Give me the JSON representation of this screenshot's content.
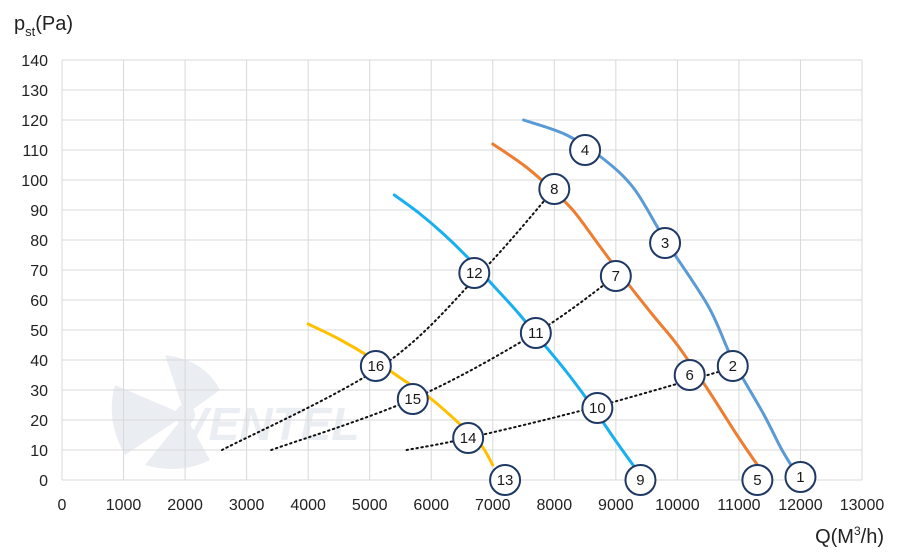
{
  "chart_data": {
    "type": "line",
    "title": "",
    "ylabel": {
      "main": "p",
      "sub": "st",
      "unit": "(Pa)"
    },
    "xlabel": {
      "main": "Q(M",
      "sup": "3",
      "unit": "/h)"
    },
    "xlim": [
      0,
      13000
    ],
    "ylim": [
      0,
      140
    ],
    "x_ticks": [
      0,
      1000,
      2000,
      3000,
      4000,
      5000,
      6000,
      7000,
      8000,
      9000,
      10000,
      11000,
      12000,
      13000
    ],
    "y_ticks": [
      0,
      10,
      20,
      30,
      40,
      50,
      60,
      70,
      80,
      90,
      100,
      110,
      120,
      130,
      140
    ],
    "grid": true,
    "watermark": "VENTEL",
    "series": [
      {
        "color": "#5b9bd5",
        "points": [
          [
            7500,
            120
          ],
          [
            8200,
            115
          ],
          [
            8800,
            107
          ],
          [
            9300,
            97
          ],
          [
            9800,
            80
          ],
          [
            10500,
            58
          ],
          [
            10900,
            40
          ],
          [
            11400,
            22
          ],
          [
            11700,
            10
          ],
          [
            11970,
            1
          ]
        ]
      },
      {
        "color": "#ed7d31",
        "points": [
          [
            7000,
            112
          ],
          [
            7500,
            105
          ],
          [
            7900,
            98
          ],
          [
            8300,
            90
          ],
          [
            8700,
            79
          ],
          [
            9100,
            68
          ],
          [
            9600,
            55
          ],
          [
            10000,
            45
          ],
          [
            10500,
            30
          ],
          [
            11000,
            14
          ],
          [
            11370,
            3
          ]
        ]
      },
      {
        "color": "#1ab0ef",
        "points": [
          [
            5400,
            95
          ],
          [
            5800,
            89
          ],
          [
            6200,
            82
          ],
          [
            6600,
            74
          ],
          [
            7000,
            65
          ],
          [
            7400,
            56
          ],
          [
            7800,
            46
          ],
          [
            8200,
            36
          ],
          [
            8600,
            25
          ],
          [
            9000,
            13
          ],
          [
            9350,
            3
          ]
        ]
      },
      {
        "color": "#ffc000",
        "points": [
          [
            4000,
            52
          ],
          [
            4500,
            47
          ],
          [
            5000,
            41
          ],
          [
            5500,
            34
          ],
          [
            6000,
            27
          ],
          [
            6500,
            18
          ],
          [
            6800,
            12
          ],
          [
            7000,
            5
          ]
        ]
      }
    ],
    "operating_lines": [
      {
        "color": "#111111",
        "points": [
          [
            2600,
            10
          ],
          [
            5200,
            38
          ],
          [
            6800,
            69
          ],
          [
            8000,
            97
          ]
        ]
      },
      {
        "color": "#111111",
        "points": [
          [
            3400,
            10
          ],
          [
            5700,
            27
          ],
          [
            7700,
            49
          ],
          [
            9000,
            68
          ]
        ]
      },
      {
        "color": "#111111",
        "points": [
          [
            5600,
            10
          ],
          [
            6600,
            14
          ],
          [
            8600,
            24
          ],
          [
            11000,
            38
          ]
        ]
      }
    ],
    "markers": [
      {
        "label": "1",
        "x": 12000,
        "y": 1
      },
      {
        "label": "2",
        "x": 10900,
        "y": 38
      },
      {
        "label": "3",
        "x": 9800,
        "y": 79
      },
      {
        "label": "4",
        "x": 8500,
        "y": 110
      },
      {
        "label": "5",
        "x": 11300,
        "y": 0
      },
      {
        "label": "6",
        "x": 10200,
        "y": 35
      },
      {
        "label": "7",
        "x": 9000,
        "y": 68
      },
      {
        "label": "8",
        "x": 8000,
        "y": 97
      },
      {
        "label": "9",
        "x": 9400,
        "y": 0
      },
      {
        "label": "10",
        "x": 8700,
        "y": 24
      },
      {
        "label": "11",
        "x": 7700,
        "y": 49
      },
      {
        "label": "12",
        "x": 6700,
        "y": 69
      },
      {
        "label": "13",
        "x": 7200,
        "y": 0
      },
      {
        "label": "14",
        "x": 6600,
        "y": 14
      },
      {
        "label": "15",
        "x": 5700,
        "y": 27
      },
      {
        "label": "16",
        "x": 5100,
        "y": 38
      }
    ]
  }
}
